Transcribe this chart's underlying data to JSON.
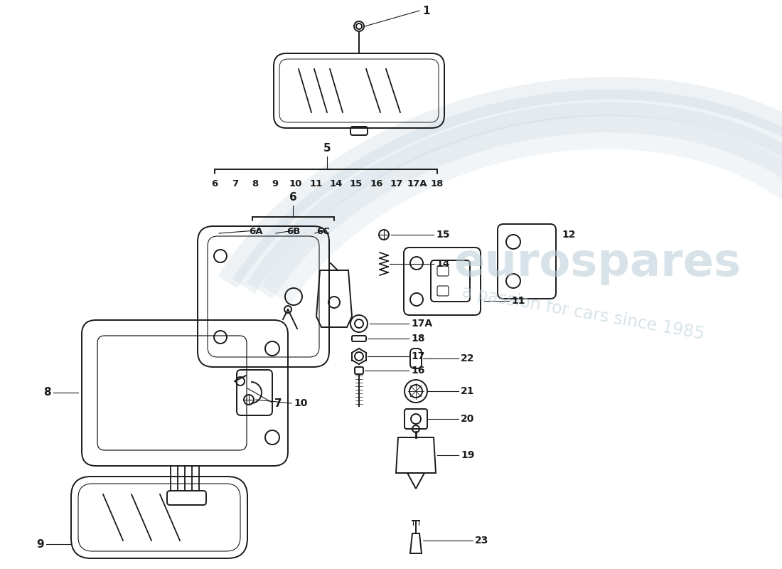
{
  "bg_color": "#ffffff",
  "lc": "#1a1a1a",
  "lw": 1.4,
  "wm_arc_color": "#b8ccd8",
  "wm_text1": "eurospares",
  "wm_text2": "a passion for cars since 1985",
  "bracket_nums": [
    "6",
    "7",
    "8",
    "9",
    "10",
    "11",
    "14",
    "15",
    "16",
    "17",
    "17A",
    "18"
  ],
  "sub6_labels": [
    "6A",
    "6B",
    "6C"
  ]
}
